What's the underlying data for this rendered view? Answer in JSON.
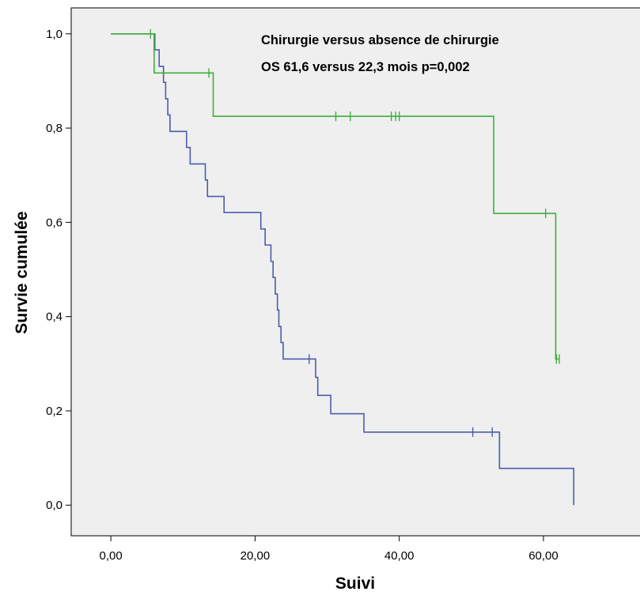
{
  "chart_data": {
    "type": "line",
    "subtype": "kaplan-meier",
    "xlabel": "Suivi",
    "ylabel": "Survie cumulée",
    "xlim": [
      -5.5,
      73.5
    ],
    "ylim": [
      -0.065,
      1.055
    ],
    "xticks": [
      0,
      20,
      40,
      60
    ],
    "xtick_labels": [
      "0,00",
      "20,00",
      "40,00",
      "60,00"
    ],
    "yticks": [
      0,
      0.2,
      0.4,
      0.6,
      0.8,
      1.0
    ],
    "ytick_labels": [
      "0,0",
      "0,2",
      "0,4",
      "0,6",
      "0,8",
      "1,0"
    ],
    "grid": false,
    "background": "#efefef",
    "annotation_lines": [
      "Chirurgie versus absence de chirurgie",
      "OS 61,6 versus 22,3 mois  p=0,002"
    ],
    "series": [
      {
        "color": "#4e5cad",
        "steps": [
          [
            0,
            1.0
          ],
          [
            6.1,
            0.966
          ],
          [
            6.7,
            0.931
          ],
          [
            7.3,
            0.897
          ],
          [
            7.6,
            0.862
          ],
          [
            7.9,
            0.828
          ],
          [
            8.2,
            0.793
          ],
          [
            10.5,
            0.759
          ],
          [
            11.0,
            0.724
          ],
          [
            13.1,
            0.69
          ],
          [
            13.4,
            0.655
          ],
          [
            15.7,
            0.621
          ],
          [
            20.8,
            0.586
          ],
          [
            21.4,
            0.552
          ],
          [
            22.2,
            0.517
          ],
          [
            22.5,
            0.483
          ],
          [
            22.8,
            0.448
          ],
          [
            23.1,
            0.414
          ],
          [
            23.3,
            0.379
          ],
          [
            23.6,
            0.345
          ],
          [
            23.9,
            0.31
          ],
          [
            28.4,
            0.271
          ],
          [
            28.7,
            0.233
          ],
          [
            30.5,
            0.194
          ],
          [
            35.1,
            0.155
          ],
          [
            53.9,
            0.078
          ],
          [
            64.2,
            0.0
          ]
        ],
        "end_x": 64.2,
        "censored": [
          [
            27.5,
            0.31
          ],
          [
            50.2,
            0.155
          ],
          [
            52.9,
            0.155
          ]
        ]
      },
      {
        "color": "#3cb03c",
        "steps": [
          [
            0,
            1.0
          ],
          [
            6.0,
            0.917
          ],
          [
            14.2,
            0.825
          ],
          [
            53.1,
            0.619
          ],
          [
            61.7,
            0.31
          ]
        ],
        "end_x": 62.1,
        "censored": [
          [
            5.5,
            1.0
          ],
          [
            13.6,
            0.917
          ],
          [
            31.2,
            0.825
          ],
          [
            33.2,
            0.825
          ],
          [
            38.9,
            0.825
          ],
          [
            39.5,
            0.825
          ],
          [
            40.0,
            0.825
          ],
          [
            60.3,
            0.619
          ],
          [
            61.8,
            0.31
          ],
          [
            62.2,
            0.31
          ]
        ]
      }
    ]
  }
}
